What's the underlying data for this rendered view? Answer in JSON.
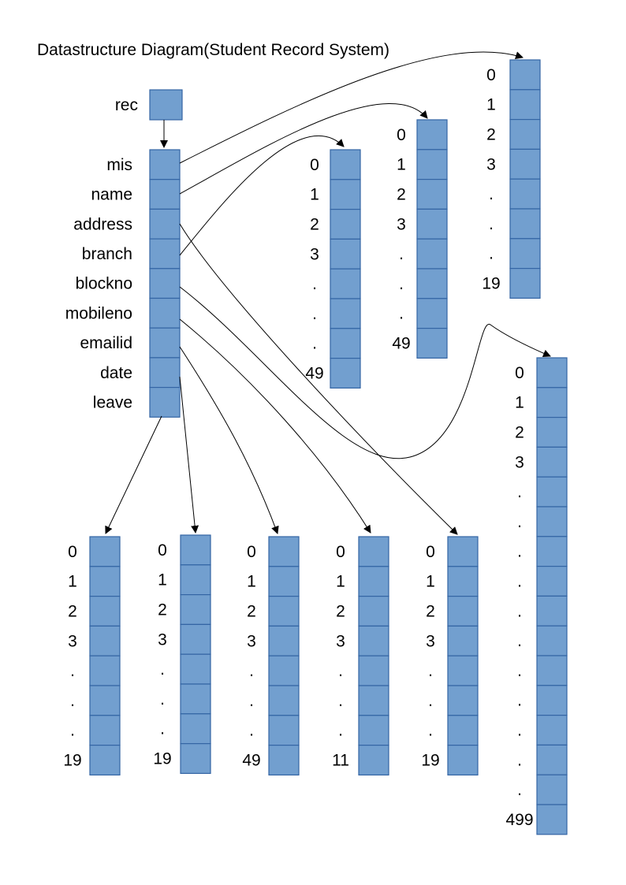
{
  "title": "Datastructure Diagram(Student Record System)",
  "rec_label": "rec",
  "fields": [
    "mis",
    "name",
    "address",
    "branch",
    "blockno",
    "mobileno",
    "emailid",
    "date",
    "leave"
  ],
  "arrays": [
    {
      "id": "mis-array",
      "labels": [
        "0",
        "1",
        "2",
        "3",
        ".",
        ".",
        ".",
        "19"
      ]
    },
    {
      "id": "name-array",
      "labels": [
        "0",
        "1",
        "2",
        "3",
        ".",
        ".",
        ".",
        "49"
      ]
    },
    {
      "id": "branch-array",
      "labels": [
        "0",
        "1",
        "2",
        "3",
        ".",
        ".",
        ".",
        "49"
      ]
    },
    {
      "id": "address-array",
      "labels": [
        "0",
        "1",
        "2",
        "3",
        ".",
        ".",
        ".",
        ".",
        ".",
        ".",
        ".",
        ".",
        ".",
        ".",
        ".",
        "499"
      ]
    },
    {
      "id": "leave-array",
      "labels": [
        "0",
        "1",
        "2",
        "3",
        ".",
        ".",
        ".",
        "19"
      ]
    },
    {
      "id": "date-array",
      "labels": [
        "0",
        "1",
        "2",
        "3",
        ".",
        ".",
        ".",
        "19"
      ]
    },
    {
      "id": "emailid-array",
      "labels": [
        "0",
        "1",
        "2",
        "3",
        ".",
        ".",
        ".",
        "49"
      ]
    },
    {
      "id": "mobileno-array",
      "labels": [
        "0",
        "1",
        "2",
        "3",
        ".",
        ".",
        ".",
        "11"
      ]
    },
    {
      "id": "blockno-array",
      "labels": [
        "0",
        "1",
        "2",
        "3",
        ".",
        ".",
        ".",
        "19"
      ]
    }
  ],
  "colors": {
    "cell_fill": "#729fcf",
    "cell_stroke": "#3465a4",
    "line": "#000000"
  }
}
